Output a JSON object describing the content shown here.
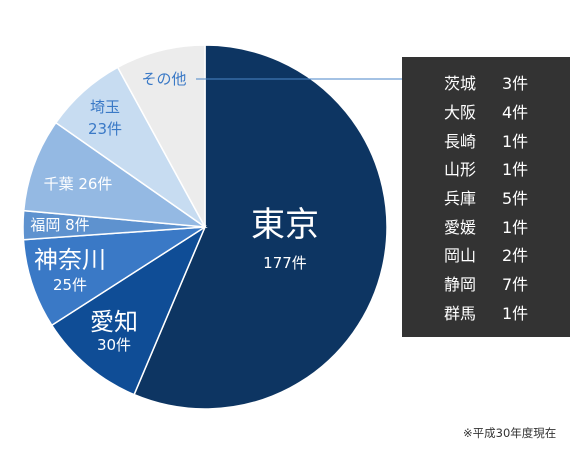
{
  "chart_data": {
    "type": "pie",
    "slices": [
      {
        "name": "東京",
        "value_label": "177件",
        "value": 177,
        "color": "#0d3562"
      },
      {
        "name": "愛知",
        "value_label": "30件",
        "value": 30,
        "color": "#0f4d96"
      },
      {
        "name": "神奈川",
        "value_label": "25件",
        "value": 25,
        "color": "#3a79c6"
      },
      {
        "name": "福岡",
        "value_label": "8件",
        "value": 8,
        "color": "#5e92cf"
      },
      {
        "name": "千葉",
        "value_label": "26件",
        "value": 26,
        "color": "#94b9e3"
      },
      {
        "name": "埼玉",
        "value_label": "23件",
        "value": 23,
        "color": "#c7dcf1"
      },
      {
        "name": "その他",
        "value_label": "",
        "value": 25,
        "color": "#ececec"
      }
    ],
    "other_breakdown": [
      {
        "name": "茨城",
        "count": "3件"
      },
      {
        "name": "大阪",
        "count": "4件"
      },
      {
        "name": "長崎",
        "count": "1件"
      },
      {
        "name": "山形",
        "count": "1件"
      },
      {
        "name": "兵庫",
        "count": "5件"
      },
      {
        "name": "愛媛",
        "count": "1件"
      },
      {
        "name": "岡山",
        "count": "2件"
      },
      {
        "name": "静岡",
        "count": "7件"
      },
      {
        "name": "群馬",
        "count": "1件"
      }
    ],
    "leader_line_color": "#4a86c8"
  },
  "footnote": "※平成30年度現在"
}
